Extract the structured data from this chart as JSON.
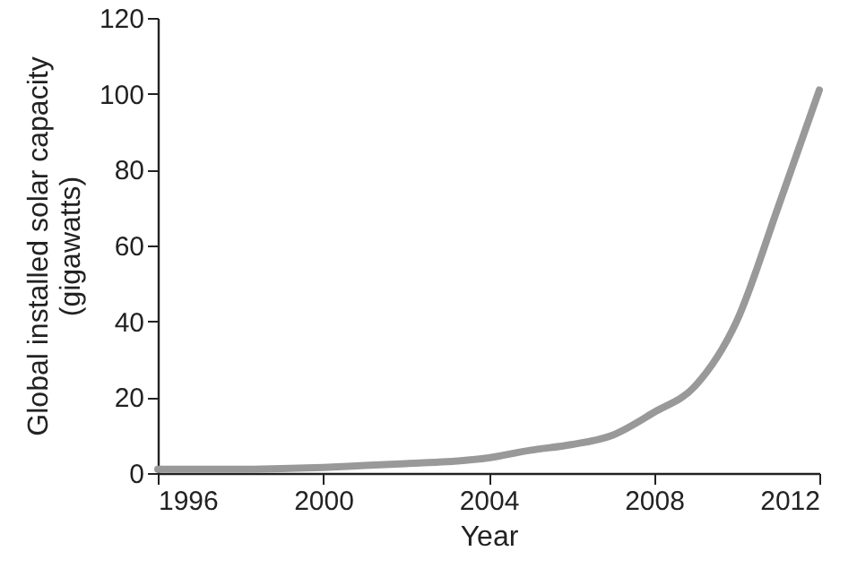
{
  "chart_data": {
    "type": "line",
    "xlabel": "Year",
    "ylabel": "Global installed solar capacity\n(gigawatts)",
    "x": [
      1996,
      1997,
      1998,
      1999,
      2000,
      2001,
      2002,
      2003,
      2004,
      2005,
      2006,
      2007,
      2008,
      2009,
      2010,
      2011,
      2012
    ],
    "series": [
      {
        "color": "#999999",
        "values": [
          1,
          1,
          1,
          1.2,
          1.5,
          2,
          2.5,
          3,
          4,
          6,
          7.5,
          10,
          16,
          23,
          40,
          70,
          101
        ]
      }
    ],
    "xlim": [
      1996,
      2012
    ],
    "xticks": [
      1996,
      2000,
      2004,
      2008,
      2012
    ],
    "ylim": [
      0,
      120
    ],
    "yticks": [
      0,
      20,
      40,
      60,
      80,
      100,
      120
    ],
    "grid": false,
    "marker": "none",
    "line_style": "solid"
  }
}
